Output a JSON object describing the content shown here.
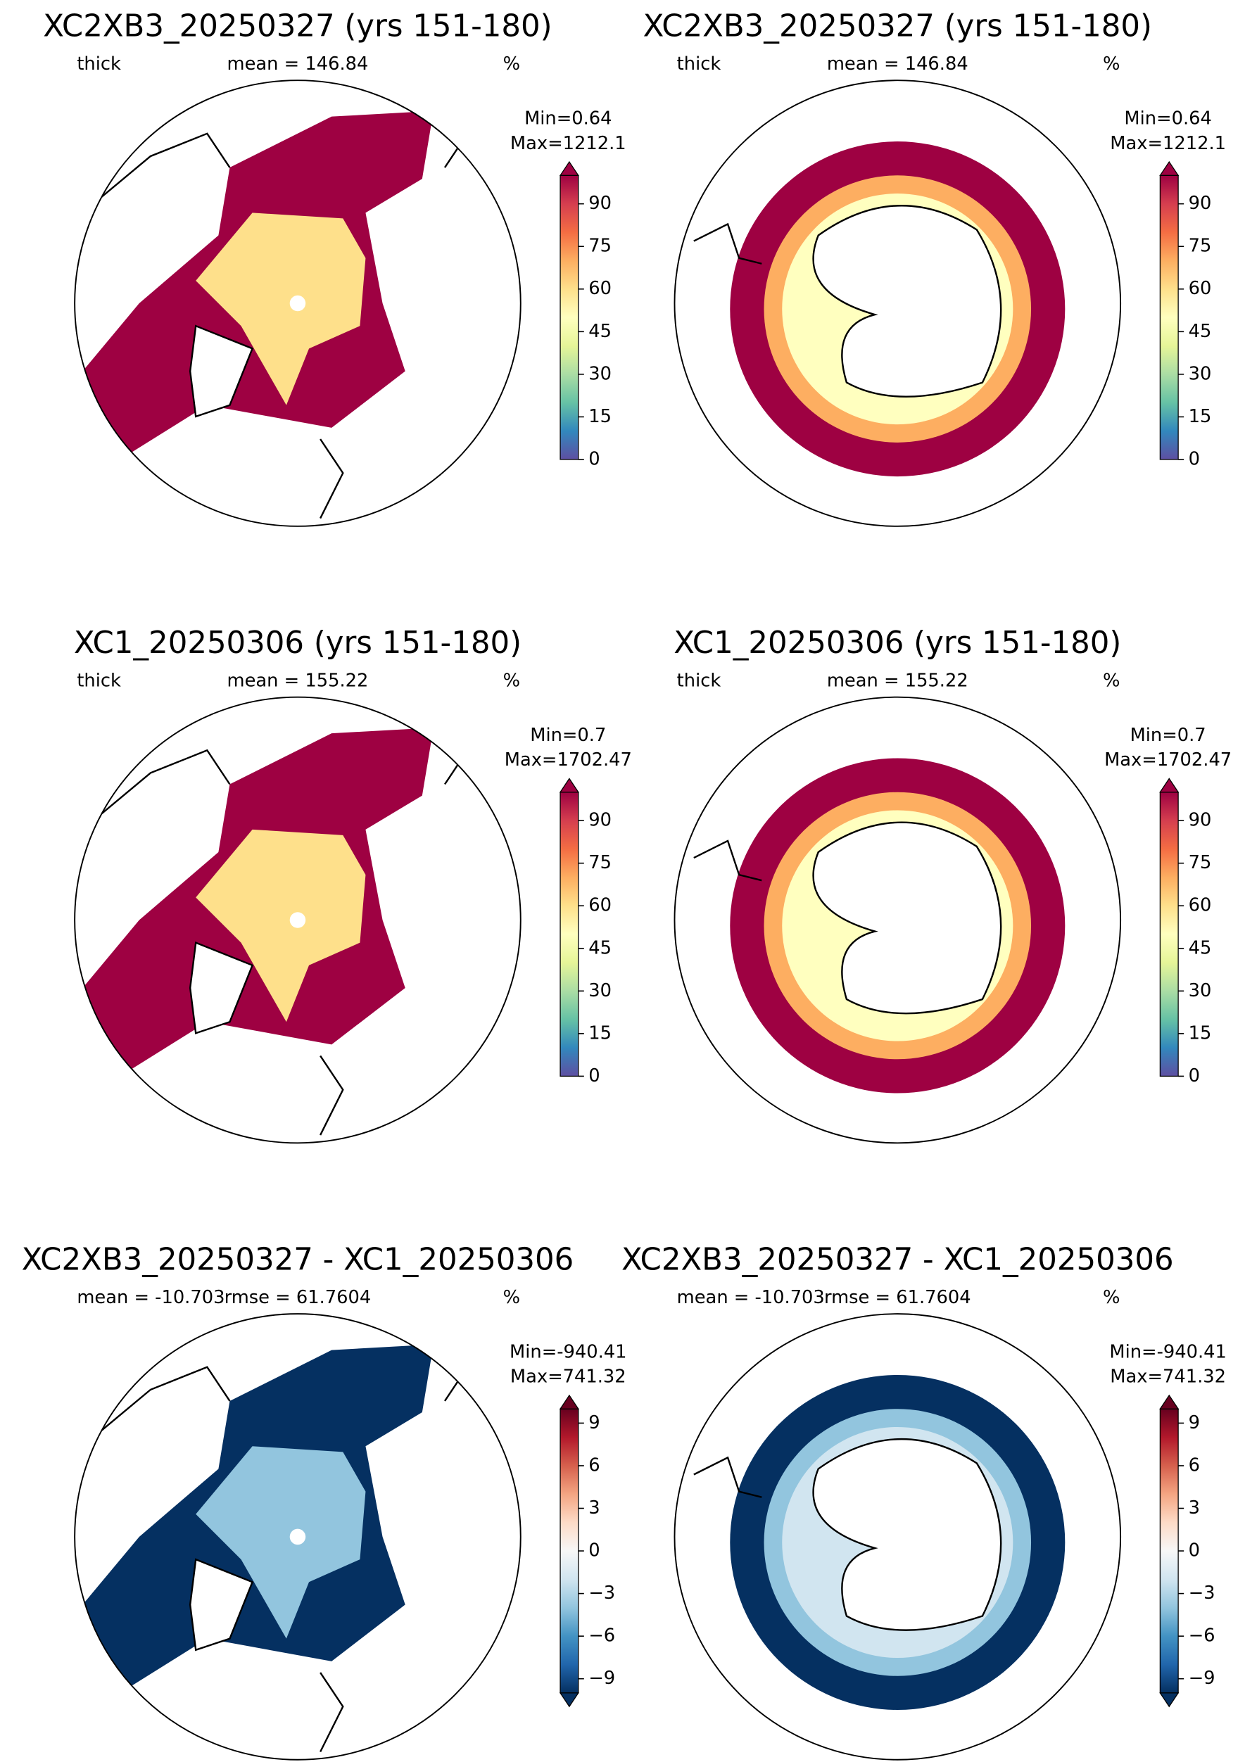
{
  "chart_data": [
    {
      "type": "map",
      "title": "XC2XB3_20250327 (yrs 151-180)",
      "left_label": "thick",
      "center_label": "mean = 146.84",
      "right_label": "%",
      "min_label": "Min=0.64",
      "max_label": "Max=1212.1",
      "ylim": [
        0,
        100
      ],
      "yticks": [
        0,
        15,
        30,
        45,
        60,
        75,
        90
      ],
      "colorbar_colors": [
        "#5e4fa2",
        "#3288bd",
        "#66c2a5",
        "#abdda4",
        "#e6f598",
        "#ffffbf",
        "#fee08b",
        "#fdae61",
        "#f46d43",
        "#d53e4f",
        "#9e0142"
      ]
    },
    {
      "type": "map",
      "title": "XC2XB3_20250327 (yrs 151-180)",
      "left_label": "thick",
      "center_label": "mean = 146.84",
      "right_label": "%",
      "min_label": "Min=0.64",
      "max_label": "Max=1212.1",
      "ylim": [
        0,
        100
      ],
      "yticks": [
        0,
        15,
        30,
        45,
        60,
        75,
        90
      ],
      "colorbar_colors": [
        "#5e4fa2",
        "#3288bd",
        "#66c2a5",
        "#abdda4",
        "#e6f598",
        "#ffffbf",
        "#fee08b",
        "#fdae61",
        "#f46d43",
        "#d53e4f",
        "#9e0142"
      ]
    },
    {
      "type": "map",
      "title": "XC1_20250306 (yrs 151-180)",
      "left_label": "thick",
      "center_label": "mean = 155.22",
      "right_label": "%",
      "min_label": "Min=0.7",
      "max_label": "Max=1702.47",
      "ylim": [
        0,
        100
      ],
      "yticks": [
        0,
        15,
        30,
        45,
        60,
        75,
        90
      ],
      "colorbar_colors": [
        "#5e4fa2",
        "#3288bd",
        "#66c2a5",
        "#abdda4",
        "#e6f598",
        "#ffffbf",
        "#fee08b",
        "#fdae61",
        "#f46d43",
        "#d53e4f",
        "#9e0142"
      ]
    },
    {
      "type": "map",
      "title": "XC1_20250306 (yrs 151-180)",
      "left_label": "thick",
      "center_label": "mean = 155.22",
      "right_label": "%",
      "min_label": "Min=0.7",
      "max_label": "Max=1702.47",
      "ylim": [
        0,
        100
      ],
      "yticks": [
        0,
        15,
        30,
        45,
        60,
        75,
        90
      ],
      "colorbar_colors": [
        "#5e4fa2",
        "#3288bd",
        "#66c2a5",
        "#abdda4",
        "#e6f598",
        "#ffffbf",
        "#fee08b",
        "#fdae61",
        "#f46d43",
        "#d53e4f",
        "#9e0142"
      ]
    },
    {
      "type": "map",
      "title": "XC2XB3_20250327 - XC1_20250306",
      "left_label": "mean = -10.703",
      "center_label": "rmse = 61.7604",
      "right_label": "%",
      "min_label": "Min=-940.41",
      "max_label": "Max=741.32",
      "ylim": [
        -10,
        10
      ],
      "yticks": [
        {
          "value": -9,
          "label": "−9"
        },
        {
          "value": -6,
          "label": "−6"
        },
        {
          "value": -3,
          "label": "−3"
        },
        0,
        3,
        6,
        9
      ],
      "colorbar_colors": [
        "#053061",
        "#2166ac",
        "#4393c3",
        "#92c5de",
        "#d1e5f0",
        "#f7f7f7",
        "#fddbc7",
        "#f4a582",
        "#d6604d",
        "#b2182b",
        "#67001f"
      ]
    },
    {
      "type": "map",
      "title": "XC2XB3_20250327 - XC1_20250306",
      "left_label": "mean = -10.703",
      "center_label": "rmse = 61.7604",
      "right_label": "%",
      "min_label": "Min=-940.41",
      "max_label": "Max=741.32",
      "ylim": [
        -10,
        10
      ],
      "yticks": [
        {
          "value": -9,
          "label": "−9"
        },
        {
          "value": -6,
          "label": "−6"
        },
        {
          "value": -3,
          "label": "−3"
        },
        0,
        3,
        6,
        9
      ],
      "colorbar_colors": [
        "#053061",
        "#2166ac",
        "#4393c3",
        "#92c5de",
        "#d1e5f0",
        "#f7f7f7",
        "#fddbc7",
        "#f4a582",
        "#d6604d",
        "#b2182b",
        "#67001f"
      ]
    }
  ]
}
